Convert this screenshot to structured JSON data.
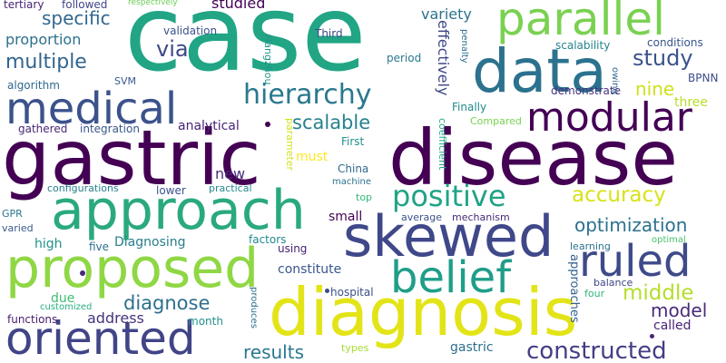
{
  "cloud": {
    "background": "#ffffff",
    "words": [
      {
        "text": "case",
        "color": "#21a585"
      },
      {
        "text": "gastric",
        "color": "#440154"
      },
      {
        "text": "disease",
        "color": "#440154"
      },
      {
        "text": "data",
        "color": "#2c728e"
      },
      {
        "text": "diagnosis",
        "color": "#e3e418"
      },
      {
        "text": "approach",
        "color": "#2aa97f"
      },
      {
        "text": "proposed",
        "color": "#8fd744"
      },
      {
        "text": "skewed",
        "color": "#3f4889"
      },
      {
        "text": "parallel",
        "color": "#7ad151"
      },
      {
        "text": "medical",
        "color": "#3b528b"
      },
      {
        "text": "oriented",
        "color": "#414487"
      },
      {
        "text": "modular",
        "color": "#440154"
      },
      {
        "text": "belief",
        "color": "#1f9e89"
      },
      {
        "text": "ruled",
        "color": "#3e4a89"
      },
      {
        "text": "hierarchy",
        "color": "#2a788e"
      },
      {
        "text": "positive",
        "color": "#20a386"
      },
      {
        "text": "constructed",
        "color": "#433e85"
      },
      {
        "text": "accuracy",
        "color": "#d8e219"
      },
      {
        "text": "optimization",
        "color": "#2c718e"
      },
      {
        "text": "scalable",
        "color": "#26828e"
      },
      {
        "text": "diagnose",
        "color": "#2e6f8e"
      },
      {
        "text": "middle",
        "color": "#b5de2b"
      },
      {
        "text": "multiple",
        "color": "#32658e"
      },
      {
        "text": "study",
        "color": "#3b528b"
      },
      {
        "text": "model",
        "color": "#472c7a"
      },
      {
        "text": "specific",
        "color": "#31688e"
      },
      {
        "text": "proportion",
        "color": "#2d708e"
      },
      {
        "text": "results",
        "color": "#2a788e"
      },
      {
        "text": "address",
        "color": "#46337f"
      },
      {
        "text": "via",
        "color": "#3e4a89"
      },
      {
        "text": "nine",
        "color": "#d0e11c"
      },
      {
        "text": "variety",
        "color": "#2c728e"
      },
      {
        "text": "tertiary",
        "color": "#482475"
      },
      {
        "text": "followed",
        "color": "#404688"
      },
      {
        "text": "studied",
        "color": "#440154"
      },
      {
        "text": "respectively",
        "color": "#6ccd5a"
      },
      {
        "text": "validation",
        "color": "#3b528b"
      },
      {
        "text": "Third",
        "color": "#3e4989"
      },
      {
        "text": "scalability",
        "color": "#25858e"
      },
      {
        "text": "conditions",
        "color": "#39568c"
      },
      {
        "text": "BPNN",
        "color": "#3d4e8a"
      },
      {
        "text": "algorithm",
        "color": "#31688e"
      },
      {
        "text": "SVM",
        "color": "#38588c"
      },
      {
        "text": "Hangzhou",
        "color": "#1f968b"
      },
      {
        "text": "effectively",
        "color": "#3f4788"
      },
      {
        "text": "penalty",
        "color": "#2d708e"
      },
      {
        "text": "period",
        "color": "#2a788e"
      },
      {
        "text": "demonstrate",
        "color": "#46327e"
      },
      {
        "text": "three",
        "color": "#b8de29"
      },
      {
        "text": "owing",
        "color": "#32658e"
      },
      {
        "text": "Finally",
        "color": "#23888e"
      },
      {
        "text": "Compared",
        "color": "#7ad151"
      },
      {
        "text": "gathered",
        "color": "#482878"
      },
      {
        "text": "integration",
        "color": "#39568c"
      },
      {
        "text": "analytical",
        "color": "#482576"
      },
      {
        "text": "First",
        "color": "#21918c"
      },
      {
        "text": "must",
        "color": "#fde725"
      },
      {
        "text": "parameter",
        "color": "#d2e21b"
      },
      {
        "text": "coefficient",
        "color": "#22a884"
      },
      {
        "text": "new",
        "color": "#472d7b"
      },
      {
        "text": "China",
        "color": "#31688e"
      },
      {
        "text": "machine",
        "color": "#2d708e"
      },
      {
        "text": "configurations",
        "color": "#277f8e"
      },
      {
        "text": "lower",
        "color": "#3a548c"
      },
      {
        "text": "practical",
        "color": "#24878e"
      },
      {
        "text": "top",
        "color": "#35b779"
      },
      {
        "text": "GPR",
        "color": "#2b758e"
      },
      {
        "text": "varied",
        "color": "#38588c"
      },
      {
        "text": "small",
        "color": "#440154"
      },
      {
        "text": "average",
        "color": "#3b528b"
      },
      {
        "text": "mechanism",
        "color": "#472a7a"
      },
      {
        "text": "high",
        "color": "#21918c"
      },
      {
        "text": "five",
        "color": "#2e6e8e"
      },
      {
        "text": "Diagnosing",
        "color": "#287c8e"
      },
      {
        "text": "factors",
        "color": "#23898e"
      },
      {
        "text": "using",
        "color": "#482173"
      },
      {
        "text": "learning",
        "color": "#2c728e"
      },
      {
        "text": "optimal",
        "color": "#4ac16d"
      },
      {
        "text": "approaches",
        "color": "#33638d"
      },
      {
        "text": "constitute",
        "color": "#39568c"
      },
      {
        "text": "balance",
        "color": "#404688"
      },
      {
        "text": "four",
        "color": "#30b57c"
      },
      {
        "text": "due",
        "color": "#3fbc73"
      },
      {
        "text": "customized",
        "color": "#27ad81"
      },
      {
        "text": "hospital",
        "color": "#3d4d8a"
      },
      {
        "text": "called",
        "color": "#482475"
      },
      {
        "text": "functions",
        "color": "#481d6f"
      },
      {
        "text": "month",
        "color": "#20928c"
      },
      {
        "text": "produces",
        "color": "#2e6f8e"
      },
      {
        "text": "types",
        "color": "#a8db34"
      },
      {
        "text": "gastric",
        "color": "#2e6e8e"
      }
    ]
  }
}
